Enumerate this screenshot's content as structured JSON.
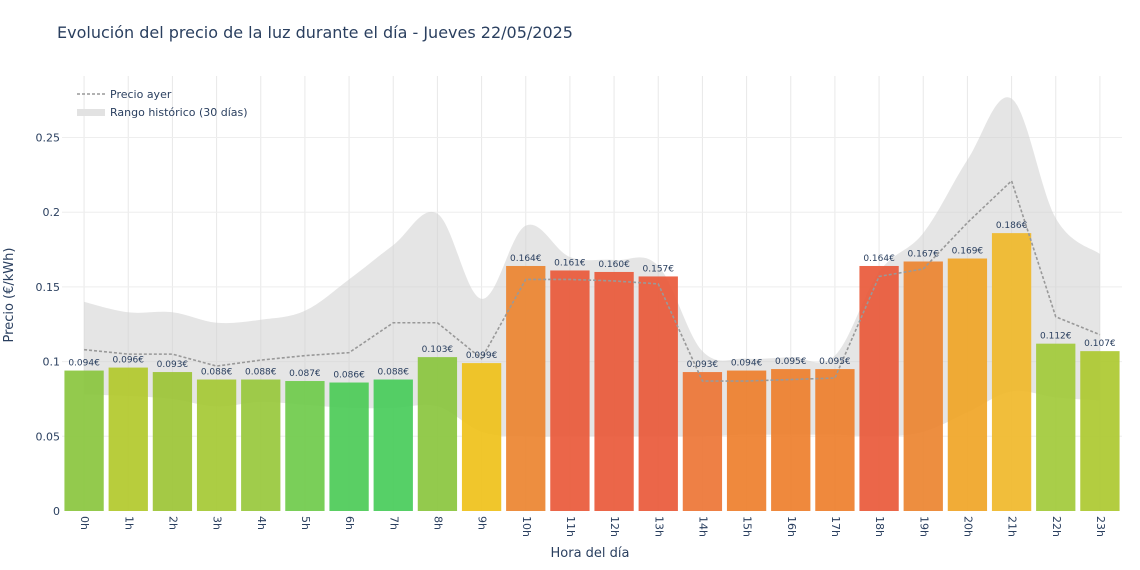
{
  "chart_data": {
    "type": "bar",
    "title": "Evolución del precio de la luz durante el día - Jueves 22/05/2025",
    "xlabel": "Hora del día",
    "ylabel": "Precio (€/kWh)",
    "ylim": [
      0,
      0.28
    ],
    "yticks": [
      0,
      0.05,
      0.1,
      0.15,
      0.2,
      0.25
    ],
    "ytick_labels": [
      "0",
      "0.05",
      "0.1",
      "0.15",
      "0.2",
      "0.25"
    ],
    "categories": [
      "0h",
      "1h",
      "2h",
      "3h",
      "4h",
      "5h",
      "6h",
      "7h",
      "8h",
      "9h",
      "10h",
      "11h",
      "12h",
      "13h",
      "14h",
      "15h",
      "16h",
      "17h",
      "18h",
      "19h",
      "20h",
      "21h",
      "22h",
      "23h"
    ],
    "values": [
      0.094,
      0.096,
      0.093,
      0.088,
      0.088,
      0.087,
      0.086,
      0.088,
      0.103,
      0.099,
      0.164,
      0.161,
      0.16,
      0.157,
      0.093,
      0.094,
      0.095,
      0.095,
      0.164,
      0.167,
      0.169,
      0.186,
      0.112,
      0.107
    ],
    "value_labels": [
      "0.094€",
      "0.096€",
      "0.093€",
      "0.088€",
      "0.088€",
      "0.087€",
      "0.086€",
      "0.088€",
      "0.103€",
      "0.099€",
      "0.164€",
      "0.161€",
      "0.160€",
      "0.157€",
      "0.093€",
      "0.094€",
      "0.095€",
      "0.095€",
      "0.164€",
      "0.167€",
      "0.169€",
      "0.186€",
      "0.112€",
      "0.107€"
    ],
    "bar_colors": [
      "#8ac53e",
      "#b2c92b",
      "#9cc435",
      "#a5c934",
      "#98c83c",
      "#6fcb4b",
      "#4ccb57",
      "#48cc5a",
      "#8ac53e",
      "#efc11a",
      "#ec8430",
      "#e9593a",
      "#e9593a",
      "#e9593a",
      "#ed7535",
      "#ee7f2d",
      "#ee7f2d",
      "#ee7f2d",
      "#e9593a",
      "#ec8430",
      "#f0a526",
      "#f0b82a",
      "#a2ca3a",
      "#adc930"
    ],
    "yesterday_series": {
      "name": "Precio ayer",
      "values": [
        0.108,
        0.105,
        0.105,
        0.097,
        0.101,
        0.104,
        0.106,
        0.126,
        0.126,
        0.102,
        0.155,
        0.155,
        0.154,
        0.152,
        0.087,
        0.087,
        0.088,
        0.089,
        0.157,
        0.162,
        0.193,
        0.221,
        0.13,
        0.118
      ]
    },
    "historical_range": {
      "name": "Rango histórico (30 días)",
      "upper": [
        0.14,
        0.133,
        0.133,
        0.126,
        0.128,
        0.134,
        0.155,
        0.178,
        0.199,
        0.142,
        0.191,
        0.17,
        0.168,
        0.164,
        0.107,
        0.102,
        0.103,
        0.104,
        0.16,
        0.186,
        0.235,
        0.276,
        0.196,
        0.172
      ],
      "lower": [
        0.078,
        0.077,
        0.075,
        0.07,
        0.073,
        0.071,
        0.069,
        0.069,
        0.07,
        0.053,
        0.05,
        0.05,
        0.05,
        0.05,
        0.05,
        0.051,
        0.051,
        0.051,
        0.05,
        0.053,
        0.066,
        0.08,
        0.076,
        0.074
      ]
    },
    "colors": {
      "range_fill": "#d0d0d0",
      "yesterday_line": "#999999",
      "grid": "#e8e8e8",
      "text": "#2a3f5f"
    },
    "legend": "top-left"
  }
}
